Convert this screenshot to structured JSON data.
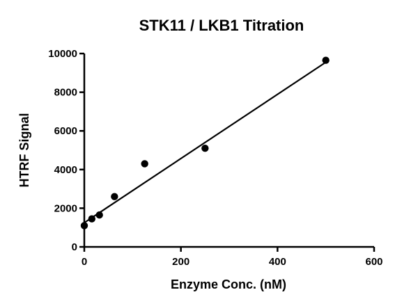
{
  "chart_data": {
    "type": "scatter",
    "title": "STK11 / LKB1  Titration",
    "xlabel": "Enzyme Conc. (nM)",
    "ylabel": "HTRF Signal",
    "xlim": [
      0,
      600
    ],
    "ylim": [
      0,
      10000
    ],
    "x_ticks": [
      0,
      200,
      400,
      600
    ],
    "y_ticks": [
      0,
      2000,
      4000,
      6000,
      8000,
      10000
    ],
    "grid": false,
    "legend": "none",
    "series": [
      {
        "x": [
          0,
          15.6,
          31.3,
          62.5,
          125,
          250,
          500
        ],
        "y": [
          1100,
          1450,
          1650,
          2600,
          4300,
          5100,
          9650
        ]
      }
    ],
    "fit_line": {
      "x": [
        0,
        500
      ],
      "y": [
        1250,
        9550
      ]
    },
    "colors": {
      "points": "#000000",
      "line": "#000000",
      "axes": "#000000"
    }
  }
}
